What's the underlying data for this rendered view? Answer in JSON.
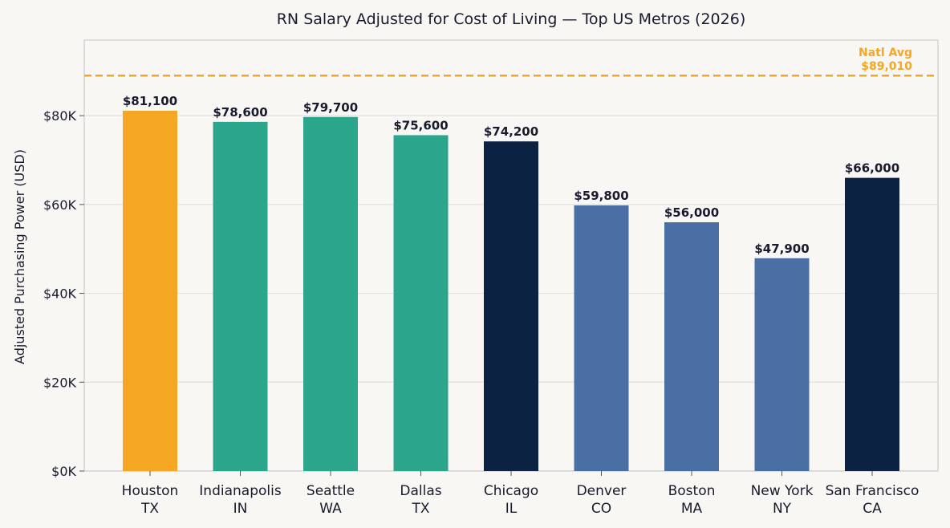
{
  "chart_data": {
    "type": "bar",
    "title": "RN Salary Adjusted for Cost of Living — Top US Metros (2026)",
    "ylabel": "Adjusted Purchasing Power (USD)",
    "xlabel": "",
    "ylim": [
      0,
      97000
    ],
    "yticks": [
      0,
      20000,
      40000,
      60000,
      80000
    ],
    "ytick_labels": [
      "$0K",
      "$20K",
      "$40K",
      "$60K",
      "$80K"
    ],
    "grid": "horizontal",
    "categories": [
      [
        "Houston",
        "TX"
      ],
      [
        "Indianapolis",
        "IN"
      ],
      [
        "Seattle",
        "WA"
      ],
      [
        "Dallas",
        "TX"
      ],
      [
        "Chicago",
        "IL"
      ],
      [
        "Denver",
        "CO"
      ],
      [
        "Boston",
        "MA"
      ],
      [
        "New York",
        "NY"
      ],
      [
        "San Francisco",
        "CA"
      ]
    ],
    "values": [
      81100,
      78600,
      79700,
      75600,
      74200,
      59800,
      56000,
      47900,
      66000
    ],
    "value_labels": [
      "$81,100",
      "$78,600",
      "$79,700",
      "$75,600",
      "$74,200",
      "$59,800",
      "$56,000",
      "$47,900",
      "$66,000"
    ],
    "colors": [
      "#f5a623",
      "#2ca58d",
      "#2ca58d",
      "#2ca58d",
      "#0b2242",
      "#4a6fa5",
      "#4a6fa5",
      "#4a6fa5",
      "#0b2242"
    ],
    "reference_line": {
      "value": 89010,
      "label_lines": [
        "Natl Avg",
        "$89,010"
      ],
      "color": "#f5a623"
    }
  }
}
